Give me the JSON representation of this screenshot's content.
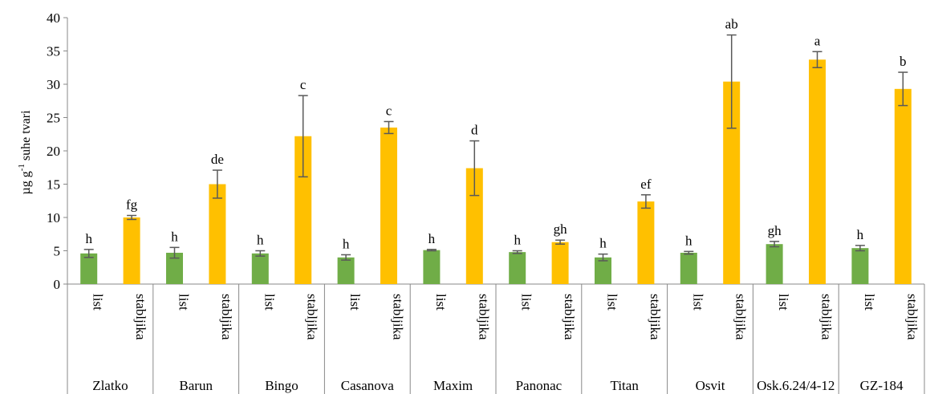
{
  "chart_data": {
    "type": "bar",
    "title": "",
    "xlabel": "",
    "ylabel": "µg g -1 suhe tvari",
    "ylabel_parts": [
      "µg g",
      "-1",
      " suhe tvari"
    ],
    "ylim": [
      0,
      40
    ],
    "yticks": [
      0,
      5,
      10,
      15,
      20,
      25,
      30,
      35,
      40
    ],
    "grid": false,
    "legend": "none",
    "colors": {
      "list": "#70ad47",
      "stabljika": "#ffc000",
      "error_bar": "#595959",
      "axis": "#888888"
    },
    "groups": [
      "Zlatko",
      "Barun",
      "Bingo",
      "Casanova",
      "Maxim",
      "Panonac",
      "Titan",
      "Osvit",
      "Osk.6.24/4-12",
      "GZ-184"
    ],
    "subcategories": [
      "list",
      "stabljika"
    ],
    "series": [
      {
        "name": "list",
        "values": [
          4.6,
          4.7,
          4.6,
          4.0,
          5.1,
          4.8,
          4.0,
          4.7,
          6.0,
          5.4
        ],
        "errors": [
          0.6,
          0.8,
          0.4,
          0.4,
          0.1,
          0.2,
          0.5,
          0.2,
          0.4,
          0.4
        ],
        "labels": [
          "h",
          "h",
          "h",
          "h",
          "h",
          "h",
          "h",
          "h",
          "gh",
          "h"
        ]
      },
      {
        "name": "stabljika",
        "values": [
          10.0,
          15.0,
          22.2,
          23.5,
          17.4,
          6.3,
          12.4,
          30.4,
          33.7,
          29.3
        ],
        "errors": [
          0.3,
          2.1,
          6.1,
          0.9,
          4.1,
          0.3,
          1.0,
          7.0,
          1.2,
          2.5
        ],
        "labels": [
          "fg",
          "de",
          "c",
          "c",
          "d",
          "gh",
          "ef",
          "ab",
          "a",
          "b"
        ]
      }
    ]
  }
}
